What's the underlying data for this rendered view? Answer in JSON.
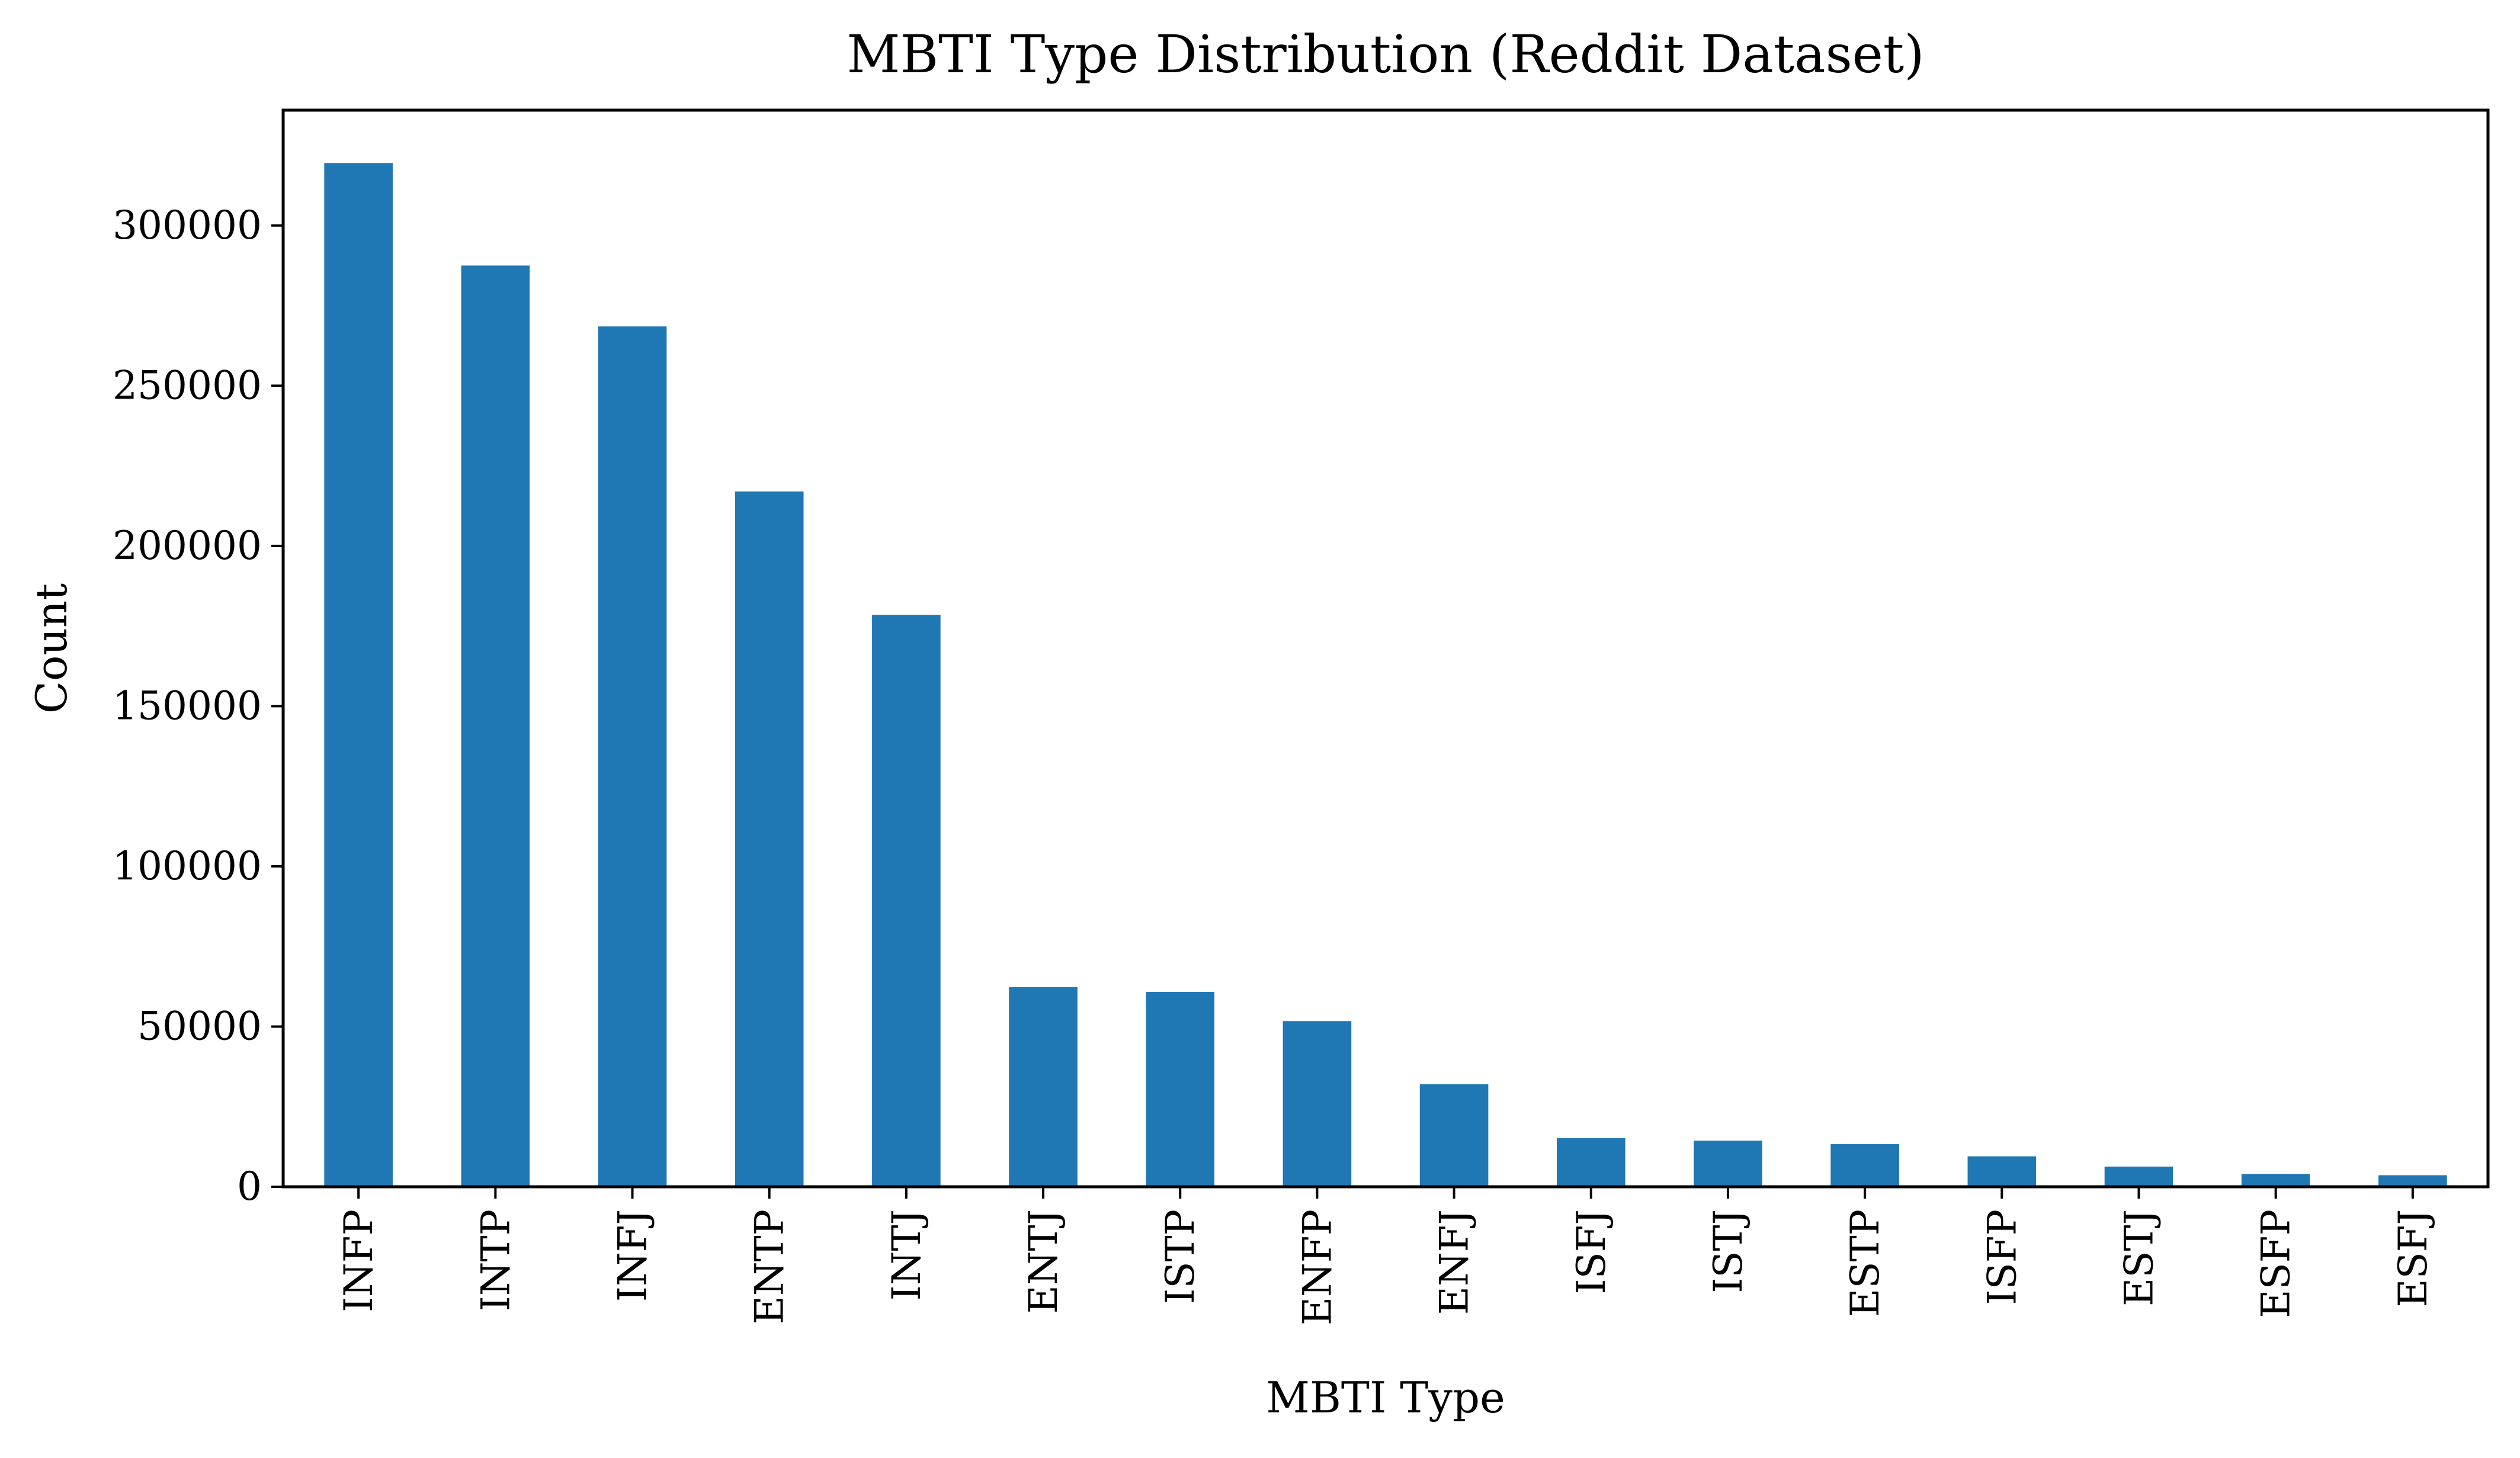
{
  "chart_data": {
    "type": "bar",
    "title": "MBTI Type Distribution (Reddit Dataset)",
    "xlabel": "MBTI Type",
    "ylabel": "Count",
    "categories": [
      "INFP",
      "INTP",
      "INFJ",
      "ENTP",
      "INTJ",
      "ENTJ",
      "ISTP",
      "ENFP",
      "ENFJ",
      "ISFJ",
      "ISTJ",
      "ESTP",
      "ISFP",
      "ESTJ",
      "ESFP",
      "ESFJ"
    ],
    "values": [
      319500,
      287500,
      268500,
      217000,
      178500,
      62300,
      60800,
      51700,
      32000,
      15200,
      14400,
      13300,
      9500,
      6300,
      4000,
      3600
    ],
    "ylim": [
      0,
      336000
    ],
    "yticks": [
      0,
      50000,
      100000,
      150000,
      200000,
      250000,
      300000
    ],
    "bar_color": "#1f77b4",
    "grid": false,
    "legend": "none"
  }
}
